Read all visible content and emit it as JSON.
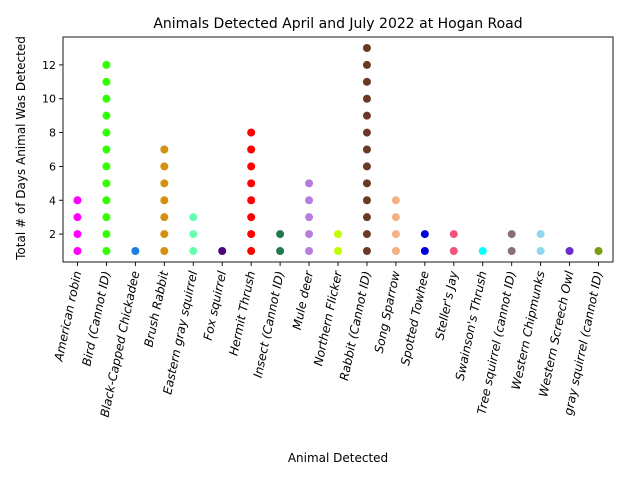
{
  "chart_data": {
    "type": "scatter",
    "title": "Animals Detected April and July 2022 at Hogan Road",
    "xlabel": "Animal Detected",
    "ylabel": "Total # of Days Animal Was Detected",
    "ylim": [
      0.35,
      13.65
    ],
    "yticks": [
      2,
      4,
      6,
      8,
      10,
      12
    ],
    "grid": false,
    "legend": "none",
    "categories": [
      "American robin",
      "Bird (Cannot ID)",
      "Black-Capped Chickadee",
      "Brush Rabbit",
      "Eastern gray squirrel",
      "Fox squirrel",
      "Hermit Thrush",
      "Insect (Cannot ID)",
      "Mule deer",
      "Northern Flicker",
      "Rabbit (Cannot ID)",
      "Song Sparrow",
      "Spotted Towhee",
      "Steller's Jay",
      "Swainson's Thrush",
      "Tree squirrel (cannot ID)",
      "Western Chipmunks",
      "Western Screech Owl",
      "gray squirrel (cannot ID)"
    ],
    "series": [
      {
        "category": "American robin",
        "color": "#ff00ff",
        "values": [
          1,
          2,
          3,
          4
        ]
      },
      {
        "category": "Bird (Cannot ID)",
        "color": "#33ff00",
        "values": [
          1,
          2,
          3,
          4,
          5,
          6,
          7,
          8,
          9,
          10,
          11,
          12
        ]
      },
      {
        "category": "Black-Capped Chickadee",
        "color": "#1e7fe0",
        "values": [
          1
        ]
      },
      {
        "category": "Brush Rabbit",
        "color": "#d4900e",
        "values": [
          1,
          2,
          3,
          4,
          5,
          6,
          7
        ]
      },
      {
        "category": "Eastern gray squirrel",
        "color": "#66ffb2",
        "values": [
          1,
          2,
          3
        ]
      },
      {
        "category": "Fox squirrel",
        "color": "#4b0082",
        "values": [
          1
        ]
      },
      {
        "category": "Hermit Thrush",
        "color": "#ff0000",
        "values": [
          1,
          2,
          3,
          4,
          5,
          6,
          7,
          8
        ]
      },
      {
        "category": "Insect (Cannot ID)",
        "color": "#1f7a4d",
        "values": [
          1,
          2
        ]
      },
      {
        "category": "Mule deer",
        "color": "#b57edc",
        "values": [
          1,
          2,
          3,
          4,
          5
        ]
      },
      {
        "category": "Northern Flicker",
        "color": "#bfff00",
        "values": [
          1,
          2
        ]
      },
      {
        "category": "Rabbit (Cannot ID)",
        "color": "#6b3a26",
        "values": [
          1,
          2,
          3,
          4,
          5,
          6,
          7,
          8,
          9,
          10,
          11,
          12,
          13
        ]
      },
      {
        "category": "Song Sparrow",
        "color": "#f4b183",
        "values": [
          1,
          2,
          3,
          4
        ]
      },
      {
        "category": "Spotted Towhee",
        "color": "#0000dd",
        "values": [
          1,
          2
        ]
      },
      {
        "category": "Steller's Jay",
        "color": "#f2537a",
        "values": [
          1,
          2
        ]
      },
      {
        "category": "Swainson's Thrush",
        "color": "#00ffff",
        "values": [
          1
        ]
      },
      {
        "category": "Tree squirrel (cannot ID)",
        "color": "#8b6f78",
        "values": [
          1,
          2
        ]
      },
      {
        "category": "Western Chipmunks",
        "color": "#8fd8f0",
        "values": [
          1,
          2
        ]
      },
      {
        "category": "Western Screech Owl",
        "color": "#6a2ccc",
        "values": [
          1
        ]
      },
      {
        "category": "gray squirrel (cannot ID)",
        "color": "#7a9e0f",
        "values": [
          1
        ]
      }
    ]
  }
}
